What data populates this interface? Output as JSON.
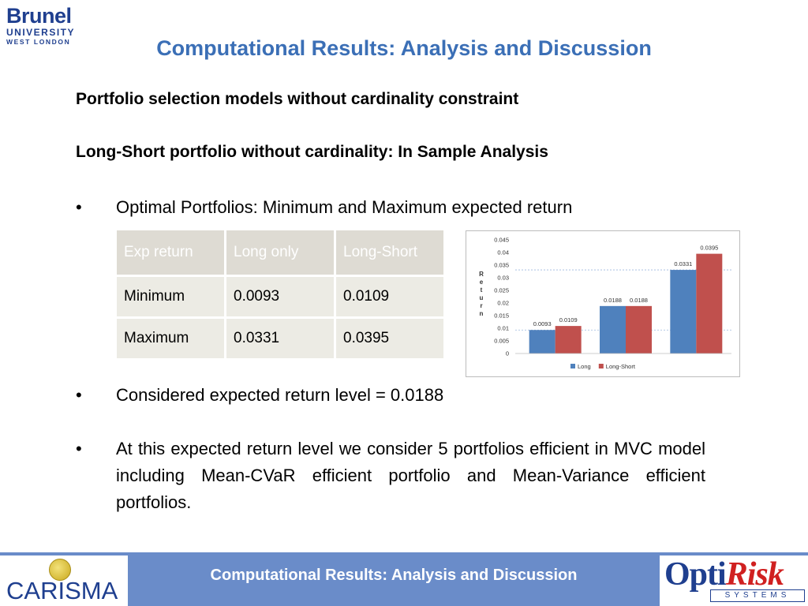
{
  "logos": {
    "brunel": {
      "line1": "Brunel",
      "line2": "UNIVERSITY",
      "line3": "WEST LONDON"
    },
    "carisma": "CARISMA",
    "optirisk": {
      "opti": "Opti",
      "risk": "Risk",
      "systems": "SYSTEMS"
    }
  },
  "title": "Computational Results: Analysis and Discussion",
  "subheading1": "Portfolio selection models without cardinality constraint",
  "subheading2": "Long-Short  portfolio without cardinality: In Sample Analysis",
  "bullet_symbol": "•",
  "bullets": [
    "Optimal Portfolios: Minimum and Maximum expected return",
    "Considered expected return level = 0.0188",
    "At this expected return level we consider 5 portfolios efficient in MVC model including Mean-CVaR efficient portfolio and Mean-Variance efficient portfolios."
  ],
  "table": {
    "headers": [
      "Exp return",
      "Long only",
      "Long-Short"
    ],
    "rows": [
      [
        "Minimum",
        "0.0093",
        "0.0109"
      ],
      [
        "Maximum",
        "0.0331",
        "0.0395"
      ]
    ]
  },
  "chart_data": {
    "type": "bar",
    "categories": [
      "",
      "",
      ""
    ],
    "series": [
      {
        "name": "Long",
        "values": [
          0.0093,
          0.0188,
          0.0331
        ],
        "labels": [
          "0.0093",
          "0.0188",
          "0.0331"
        ]
      },
      {
        "name": "Long-Short",
        "values": [
          0.0109,
          0.0188,
          0.0395
        ],
        "labels": [
          "0.0109",
          "0.0188",
          "0.0395"
        ]
      }
    ],
    "ylabel": "Return",
    "ylim": [
      0,
      0.045
    ],
    "yticks": [
      "0",
      "0.005",
      "0.01",
      "0.015",
      "0.02",
      "0.025",
      "0.03",
      "0.035",
      "0.04",
      "0.045"
    ],
    "reference_lines": [
      0.0331,
      0.0093
    ],
    "legend": "bottom",
    "colors": {
      "Long": "#4f81bd",
      "Long-Short": "#c0504d"
    }
  },
  "footer_text": "Computational Results: Analysis and Discussion"
}
